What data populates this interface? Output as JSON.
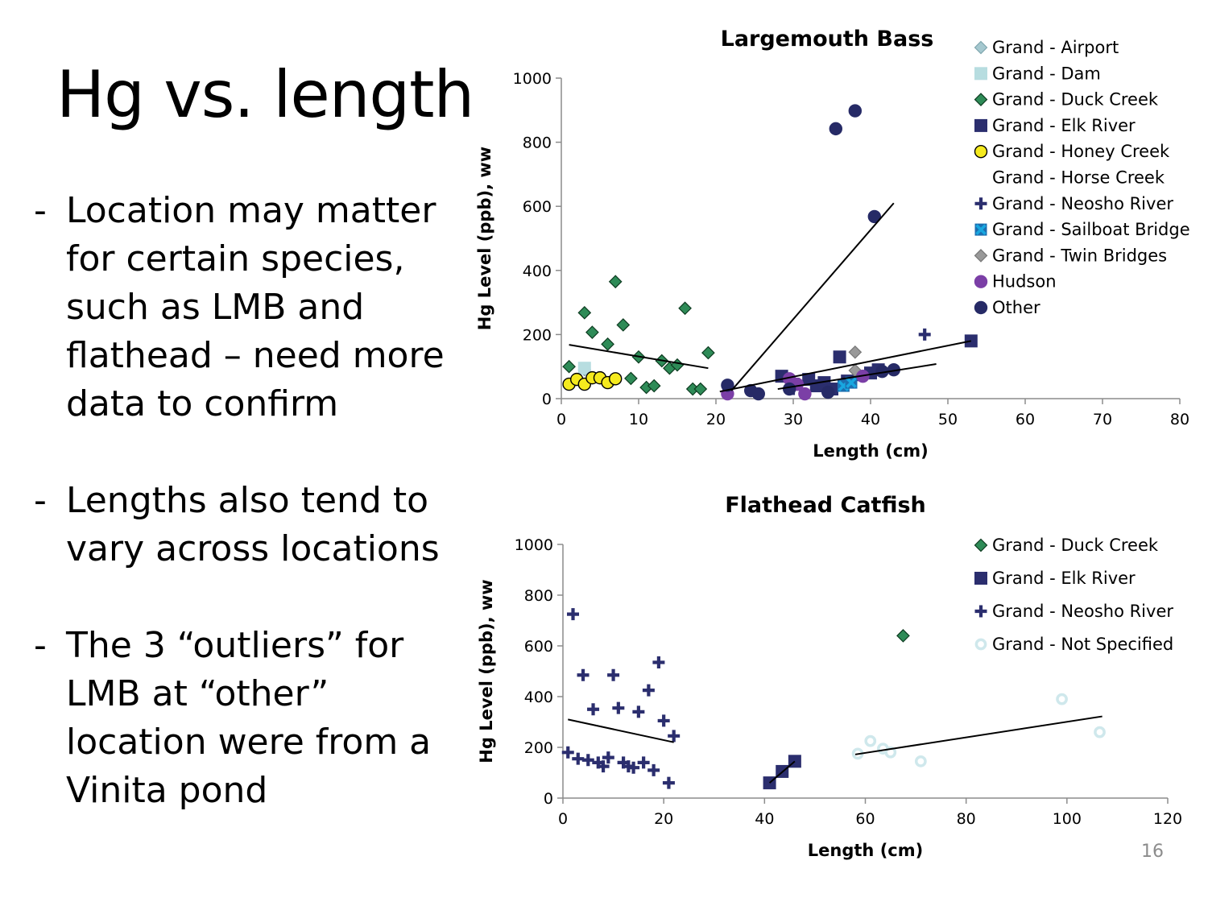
{
  "slide": {
    "title": "Hg vs. length",
    "bullets": [
      {
        "dash": "-",
        "text": "Location may matter\nfor certain species,\nsuch as LMB and\nflathead – need more\ndata to confirm"
      },
      {
        "dash": "-",
        "text": "Lengths also tend to\nvary across locations"
      },
      {
        "dash": "-",
        "text": "The 3 “outliers” for\nLMB at “other”\nlocation were from a\nVinita pond"
      }
    ],
    "page_number": "16"
  },
  "chart_data": [
    {
      "type": "scatter",
      "title": "Largemouth Bass",
      "xlabel": "Length (cm)",
      "ylabel": "Hg Level (ppb), ww",
      "xlim": [
        0,
        80
      ],
      "ylim": [
        0,
        1000
      ],
      "xticks": [
        0,
        10,
        20,
        30,
        40,
        50,
        60,
        70,
        80
      ],
      "yticks": [
        0,
        200,
        400,
        600,
        800,
        1000
      ],
      "grid": false,
      "legend_position": "top-right",
      "series": [
        {
          "name": "Grand - Airport",
          "marker": "diamond",
          "color": "#a5c8cf",
          "stroke": "#7fa7ae",
          "points": [
            [
              3,
              90
            ]
          ]
        },
        {
          "name": "Grand - Dam",
          "marker": "square",
          "color": "#b7dde0",
          "stroke": "#b7dde0",
          "points": [
            [
              3,
              95
            ]
          ]
        },
        {
          "name": "Grand - Duck Creek",
          "marker": "diamond",
          "color": "#2e8b57",
          "stroke": "#0d3b20",
          "points": [
            [
              1,
              100
            ],
            [
              3,
              268
            ],
            [
              4,
              207
            ],
            [
              6,
              170
            ],
            [
              7,
              365
            ],
            [
              8,
              230
            ],
            [
              9,
              63
            ],
            [
              10,
              130
            ],
            [
              11,
              35
            ],
            [
              12,
              40
            ],
            [
              13,
              118
            ],
            [
              14,
              95
            ],
            [
              15,
              105
            ],
            [
              16,
              282
            ],
            [
              17,
              30
            ],
            [
              18,
              30
            ],
            [
              19,
              143
            ]
          ]
        },
        {
          "name": "Grand - Elk River",
          "marker": "square",
          "color": "#2b2e6e",
          "stroke": "#2b2e6e",
          "points": [
            [
              28.5,
              70
            ],
            [
              30,
              45
            ],
            [
              32,
              60
            ],
            [
              33,
              40
            ],
            [
              34,
              50
            ],
            [
              35,
              30
            ],
            [
              36,
              130
            ],
            [
              37,
              55
            ],
            [
              40,
              80
            ],
            [
              41,
              90
            ],
            [
              53,
              180
            ]
          ]
        },
        {
          "name": "Grand - Honey Creek",
          "marker": "circle",
          "color": "#f5ea1e",
          "stroke": "#000000",
          "points": [
            [
              1,
              45
            ],
            [
              2,
              60
            ],
            [
              3,
              45
            ],
            [
              4,
              65
            ],
            [
              5,
              65
            ],
            [
              6,
              50
            ],
            [
              7,
              62
            ]
          ]
        },
        {
          "name": "Grand - Horse Creek",
          "marker": "none",
          "color": "#ffffff",
          "stroke": "#ffffff",
          "points": []
        },
        {
          "name": "Grand - Neosho River",
          "marker": "plus",
          "color": "#2b2e6e",
          "stroke": "#2b2e6e",
          "points": [
            [
              30,
              30
            ],
            [
              38,
              60
            ],
            [
              47,
              200
            ]
          ]
        },
        {
          "name": "Grand - Sailboat Bridge",
          "marker": "xsquare",
          "color": "#18a7e0",
          "stroke": "#1c6fb0",
          "points": [
            [
              36.5,
              40
            ],
            [
              37.5,
              50
            ]
          ]
        },
        {
          "name": "Grand - Twin Bridges",
          "marker": "diamond",
          "color": "#999999",
          "stroke": "#777777",
          "points": [
            [
              38,
              145
            ],
            [
              38,
              88
            ]
          ]
        },
        {
          "name": "Hudson",
          "marker": "circle",
          "color": "#7b3fa6",
          "stroke": "#7b3fa6",
          "points": [
            [
              21.5,
              15
            ],
            [
              29.5,
              62
            ],
            [
              30.5,
              45
            ],
            [
              31.5,
              15
            ],
            [
              39,
              70
            ]
          ]
        },
        {
          "name": "Other",
          "marker": "circle",
          "color": "#262a66",
          "stroke": "#262a66",
          "points": [
            [
              21.5,
              42
            ],
            [
              24.5,
              25
            ],
            [
              25.5,
              15
            ],
            [
              29.5,
              30
            ],
            [
              34.5,
              20
            ],
            [
              35.5,
              842
            ],
            [
              38,
              898
            ],
            [
              40.5,
              568
            ],
            [
              41.5,
              85
            ],
            [
              43,
              90
            ]
          ]
        }
      ],
      "trendlines": [
        {
          "from": [
            1,
            168
          ],
          "to": [
            19,
            95
          ]
        },
        {
          "from": [
            22,
            25
          ],
          "to": [
            43,
            610
          ]
        },
        {
          "from": [
            20.5,
            22
          ],
          "to": [
            53,
            180
          ]
        },
        {
          "from": [
            28,
            30
          ],
          "to": [
            48.5,
            108
          ]
        }
      ]
    },
    {
      "type": "scatter",
      "title": "Flathead Catfish",
      "xlabel": "Length (cm)",
      "ylabel": "Hg Level (ppb), ww",
      "xlim": [
        0,
        120
      ],
      "ylim": [
        0,
        1000
      ],
      "xticks": [
        0,
        20,
        40,
        60,
        80,
        100,
        120
      ],
      "yticks": [
        0,
        200,
        400,
        600,
        800,
        1000
      ],
      "grid": false,
      "legend_position": "top-right",
      "series": [
        {
          "name": "Grand - Duck Creek",
          "marker": "diamond",
          "color": "#2e8b57",
          "stroke": "#0d3b20",
          "points": [
            [
              67.5,
              640
            ]
          ]
        },
        {
          "name": "Grand - Elk River",
          "marker": "square",
          "color": "#2b2e6e",
          "stroke": "#2b2e6e",
          "points": [
            [
              41,
              60
            ],
            [
              43.5,
              105
            ],
            [
              46,
              145
            ]
          ]
        },
        {
          "name": "Grand - Neosho River",
          "marker": "plus",
          "color": "#2b2e6e",
          "stroke": "#2b2e6e",
          "points": [
            [
              1,
              180
            ],
            [
              2,
              725
            ],
            [
              3,
              155
            ],
            [
              4,
              485
            ],
            [
              5,
              150
            ],
            [
              6,
              350
            ],
            [
              7,
              140
            ],
            [
              8,
              125
            ],
            [
              9,
              160
            ],
            [
              10,
              485
            ],
            [
              11,
              355
            ],
            [
              12,
              140
            ],
            [
              13,
              125
            ],
            [
              14,
              120
            ],
            [
              15,
              340
            ],
            [
              16,
              140
            ],
            [
              17,
              425
            ],
            [
              18,
              110
            ],
            [
              19,
              535
            ],
            [
              20,
              305
            ],
            [
              21,
              60
            ],
            [
              22,
              245
            ]
          ]
        },
        {
          "name": "Grand - Not Specified",
          "marker": "ring",
          "color": "#ffffff",
          "stroke": "#cfe8ec",
          "points": [
            [
              58.5,
              175
            ],
            [
              61,
              225
            ],
            [
              63.5,
              195
            ],
            [
              65,
              180
            ],
            [
              71,
              145
            ],
            [
              99,
              390
            ],
            [
              106.5,
              260
            ]
          ]
        }
      ],
      "trendlines": [
        {
          "from": [
            1,
            310
          ],
          "to": [
            22,
            220
          ]
        },
        {
          "from": [
            41,
            60
          ],
          "to": [
            46,
            145
          ]
        },
        {
          "from": [
            58,
            172
          ],
          "to": [
            107,
            322
          ]
        }
      ]
    }
  ]
}
